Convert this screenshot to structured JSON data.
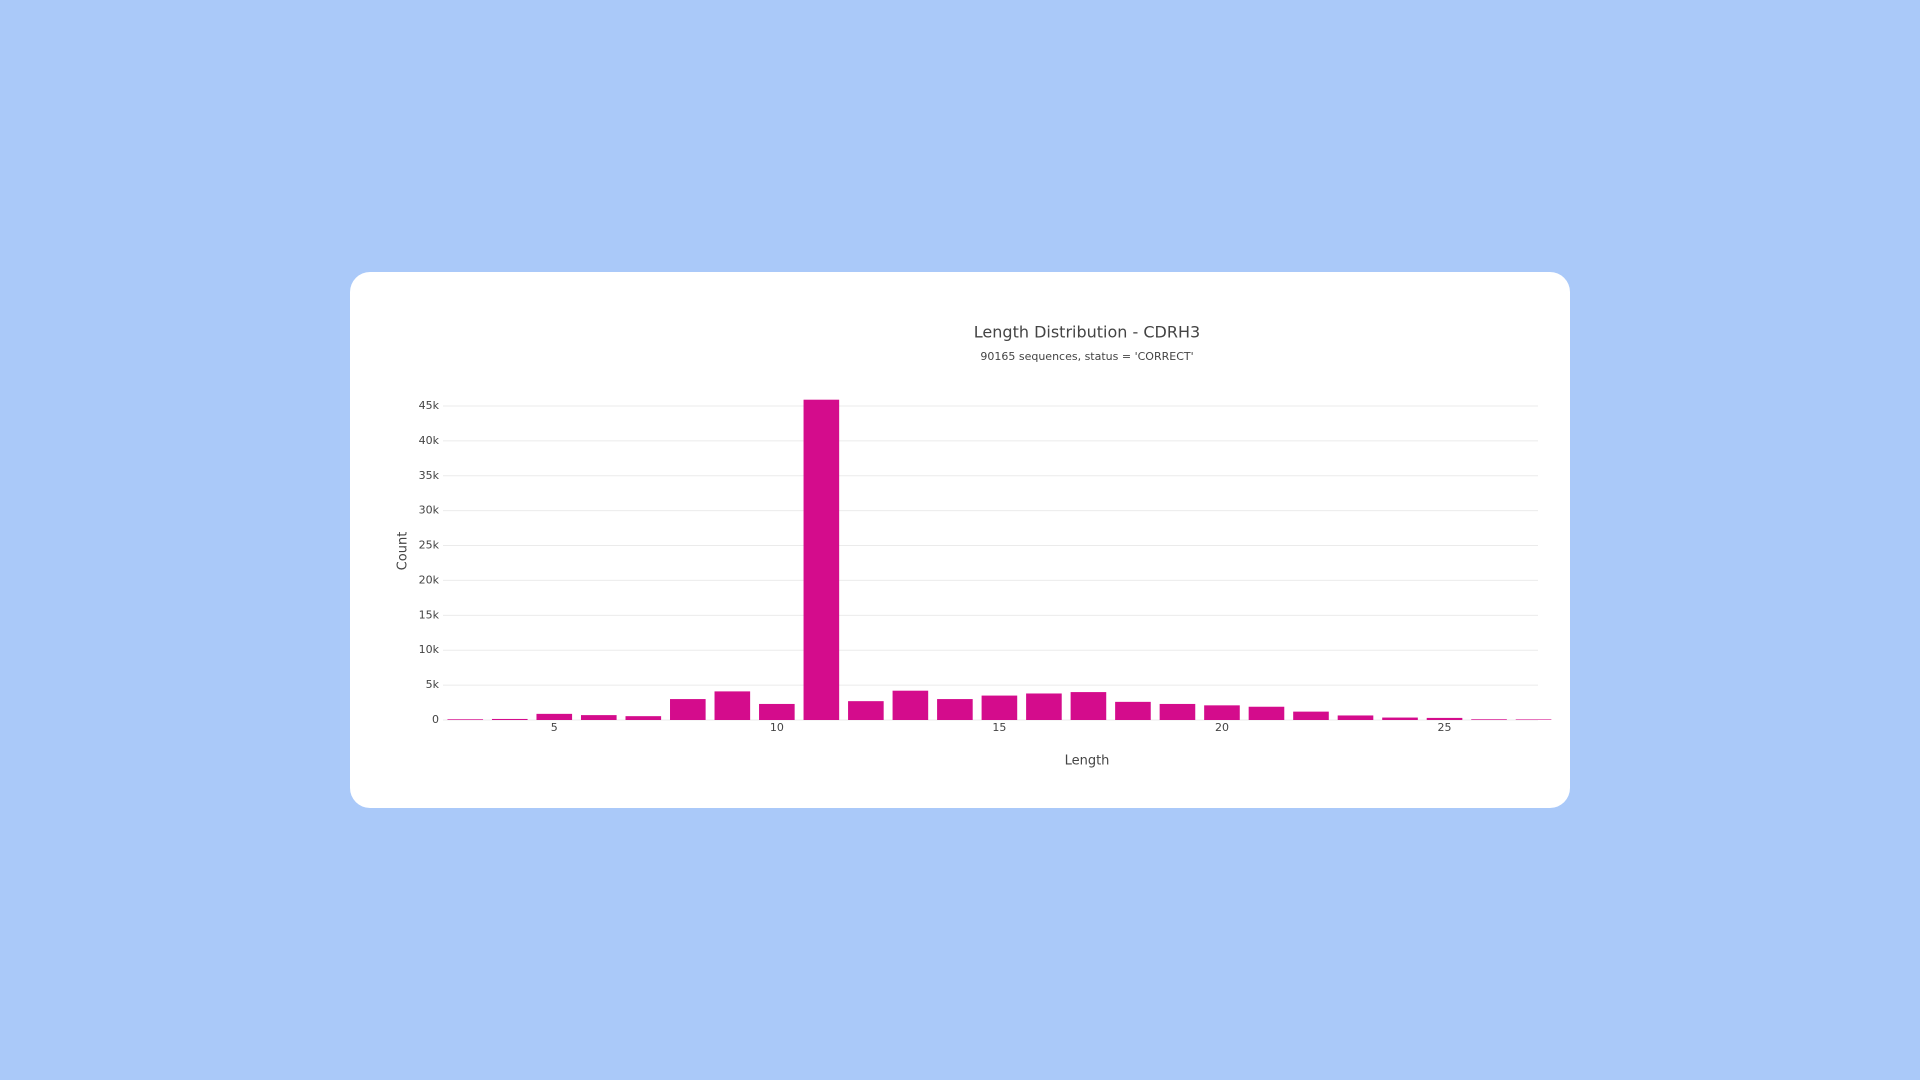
{
  "chart_data": {
    "type": "bar",
    "title": "Length Distribution - CDRH3",
    "subtitle": "90165 sequences, status = 'CORRECT'",
    "x_label": "Length",
    "y_label": "Count",
    "x": [
      3,
      4,
      5,
      6,
      7,
      8,
      9,
      10,
      11,
      12,
      13,
      14,
      15,
      16,
      17,
      18,
      19,
      20,
      21,
      22,
      23,
      24,
      25,
      26,
      27
    ],
    "values": [
      100,
      150,
      880,
      700,
      550,
      3000,
      4100,
      2300,
      45900,
      2700,
      4200,
      3000,
      3500,
      3800,
      4000,
      2600,
      2300,
      2100,
      1900,
      1200,
      650,
      350,
      300,
      100,
      80
    ],
    "color": "#d40c8c",
    "xlim": [
      2.5,
      27.1
    ],
    "xticks": [
      5,
      10,
      15,
      20,
      25
    ],
    "ylim": [
      0,
      46000
    ],
    "yticks": [
      0,
      {
        "value": 5000,
        "label": "5k"
      },
      {
        "value": 10000,
        "label": "10k"
      },
      {
        "value": 15000,
        "label": "15k"
      },
      {
        "value": 20000,
        "label": "20k"
      },
      {
        "value": 25000,
        "label": "25k"
      },
      {
        "value": 30000,
        "label": "30k"
      },
      {
        "value": 35000,
        "label": "35k"
      },
      {
        "value": 40000,
        "label": "40k"
      },
      {
        "value": 45000,
        "label": "45k"
      }
    ],
    "grid": true
  }
}
